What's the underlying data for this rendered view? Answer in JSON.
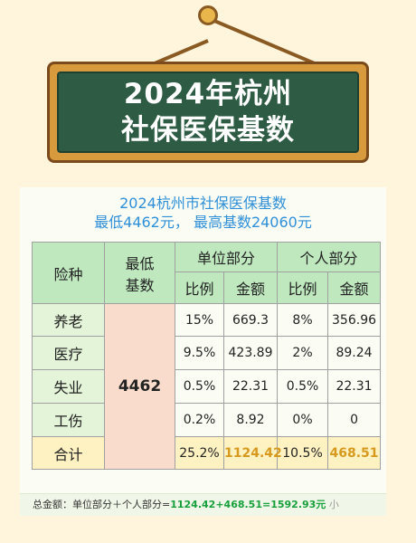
{
  "sign": {
    "line1": "2024年杭州",
    "line2": "社保医保基数"
  },
  "card": {
    "subtitle1": "2024杭州市社保医保基数",
    "subtitle2": "最低4462元， 最高基数24060元"
  },
  "table": {
    "col_type": "险种",
    "col_base": "最低基数",
    "col_base_line1": "最低",
    "col_base_line2": "基数",
    "col_unit": "单位部分",
    "col_personal": "个人部分",
    "sub_ratio": "比例",
    "sub_amount": "金额",
    "base_value": "4462",
    "rows": [
      {
        "name": "养老",
        "unit_ratio": "15%",
        "unit_amount": "669.3",
        "pers_ratio": "8%",
        "pers_amount": "356.96"
      },
      {
        "name": "医疗",
        "unit_ratio": "9.5%",
        "unit_amount": "423.89",
        "pers_ratio": "2%",
        "pers_amount": "89.24"
      },
      {
        "name": "失业",
        "unit_ratio": "0.5%",
        "unit_amount": "22.31",
        "pers_ratio": "0.5%",
        "pers_amount": "22.31"
      },
      {
        "name": "工伤",
        "unit_ratio": "0.2%",
        "unit_amount": "8.92",
        "pers_ratio": "0%",
        "pers_amount": "0"
      }
    ],
    "total": {
      "name": "合计",
      "unit_ratio": "25.2%",
      "unit_amount": "1124.42",
      "pers_ratio": "10.5%",
      "pers_amount": "468.51"
    }
  },
  "footer": {
    "label": "总金额：单位部分＋个人部分=",
    "calc": "1124.42+468.51=1592.93元",
    "tag": "小"
  },
  "colors": {
    "board": "#2d5b43",
    "header": "#bfe8bf",
    "base_cell": "#f9dccb",
    "total_row": "#fff2c2",
    "subtitle": "#2f8fd8"
  }
}
